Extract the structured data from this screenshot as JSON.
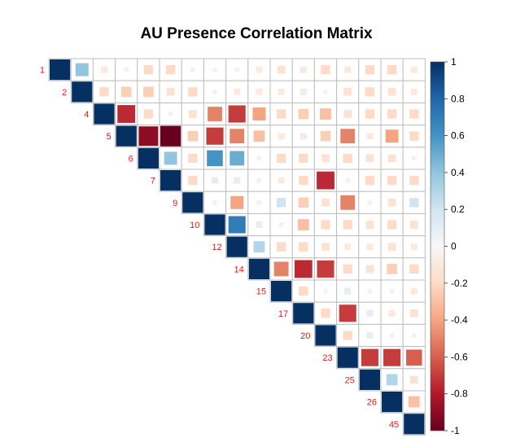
{
  "chart_data": {
    "type": "heatmap",
    "title": "AU Presence Correlation Matrix",
    "layout": "upper-triangle",
    "method": "square",
    "variables": [
      "1",
      "2",
      "4",
      "5",
      "6",
      "7",
      "9",
      "10",
      "12",
      "14",
      "15",
      "17",
      "20",
      "23",
      "25",
      "26",
      "45"
    ],
    "matrix": [
      [
        1,
        0.4,
        -0.1,
        -0.05,
        -0.2,
        -0.2,
        -0.05,
        -0.05,
        -0.05,
        -0.1,
        -0.15,
        -0.1,
        -0.2,
        -0.1,
        -0.2,
        -0.2,
        -0.1
      ],
      [
        null,
        1,
        -0.2,
        -0.25,
        -0.25,
        -0.15,
        -0.2,
        -0.05,
        -0.1,
        -0.1,
        -0.1,
        -0.1,
        -0.05,
        -0.15,
        -0.2,
        -0.15,
        -0.1
      ],
      [
        null,
        null,
        1,
        -0.75,
        -0.2,
        -0.05,
        -0.15,
        -0.5,
        -0.7,
        -0.4,
        -0.2,
        -0.25,
        -0.3,
        -0.15,
        -0.2,
        -0.2,
        -0.2
      ],
      [
        null,
        null,
        null,
        1,
        -0.9,
        -1.0,
        -0.25,
        -0.7,
        -0.5,
        -0.3,
        -0.1,
        -0.1,
        -0.25,
        -0.5,
        -0.1,
        -0.4,
        -0.2
      ],
      [
        null,
        null,
        null,
        null,
        1,
        0.4,
        -0.2,
        0.6,
        0.5,
        0.05,
        -0.2,
        -0.2,
        -0.15,
        -0.2,
        -0.15,
        -0.15,
        -0.05
      ],
      [
        null,
        null,
        null,
        null,
        null,
        1,
        -0.2,
        0.1,
        0.1,
        -0.05,
        -0.1,
        -0.2,
        -0.75,
        -0.05,
        -0.2,
        -0.2,
        -0.2
      ],
      [
        null,
        null,
        null,
        null,
        null,
        null,
        1,
        -0.05,
        -0.4,
        -0.05,
        0.2,
        -0.25,
        -0.15,
        -0.5,
        -0.05,
        -0.15,
        0.2
      ],
      [
        null,
        null,
        null,
        null,
        null,
        null,
        null,
        1,
        0.7,
        0.1,
        -0.05,
        -0.3,
        -0.2,
        -0.2,
        -0.15,
        -0.2,
        -0.15
      ],
      [
        null,
        null,
        null,
        null,
        null,
        null,
        null,
        null,
        1,
        0.3,
        -0.2,
        -0.2,
        -0.15,
        -0.1,
        -0.1,
        -0.15,
        -0.1
      ],
      [
        null,
        null,
        null,
        null,
        null,
        null,
        null,
        null,
        null,
        1,
        -0.5,
        -0.75,
        -0.7,
        -0.2,
        -0.15,
        -0.25,
        -0.2
      ],
      [
        null,
        null,
        null,
        null,
        null,
        null,
        null,
        null,
        null,
        null,
        1,
        -0.2,
        0.05,
        0.1,
        -0.05,
        -0.05,
        -0.1
      ],
      [
        null,
        null,
        null,
        null,
        null,
        null,
        null,
        null,
        null,
        null,
        null,
        1,
        -0.2,
        -0.7,
        0.1,
        -0.1,
        -0.15
      ],
      [
        null,
        null,
        null,
        null,
        null,
        null,
        null,
        null,
        null,
        null,
        null,
        null,
        1,
        -0.2,
        0.1,
        0.05,
        -0.05
      ],
      [
        null,
        null,
        null,
        null,
        null,
        null,
        null,
        null,
        null,
        null,
        null,
        null,
        null,
        1,
        -0.7,
        -0.7,
        -0.6
      ],
      [
        null,
        null,
        null,
        null,
        null,
        null,
        null,
        null,
        null,
        null,
        null,
        null,
        null,
        null,
        1,
        0.3,
        -0.15
      ],
      [
        null,
        null,
        null,
        null,
        null,
        null,
        null,
        null,
        null,
        null,
        null,
        null,
        null,
        null,
        null,
        1,
        -0.3
      ],
      [
        null,
        null,
        null,
        null,
        null,
        null,
        null,
        null,
        null,
        null,
        null,
        null,
        null,
        null,
        null,
        null,
        1
      ]
    ],
    "colorbar": {
      "min": -1,
      "max": 1,
      "ticks": [
        "1",
        "0.8",
        "0.6",
        "0.4",
        "0.2",
        "0",
        "-0.2",
        "-0.4",
        "-0.6",
        "-0.8",
        "-1"
      ]
    },
    "colors": {
      "neg_strong": "#67001f",
      "neg_mid": "#b2182b",
      "neg_light": "#d6604d",
      "neg_pale": "#f4a582",
      "neg_faint": "#fddbc7",
      "zero": "#f7f7f7",
      "pos_faint": "#d1e5f0",
      "pos_pale": "#92c5de",
      "pos_light": "#4393c3",
      "pos_mid": "#2166ac",
      "pos_strong": "#053061",
      "grid": "#bebebe",
      "label": "#e41a1c"
    }
  }
}
